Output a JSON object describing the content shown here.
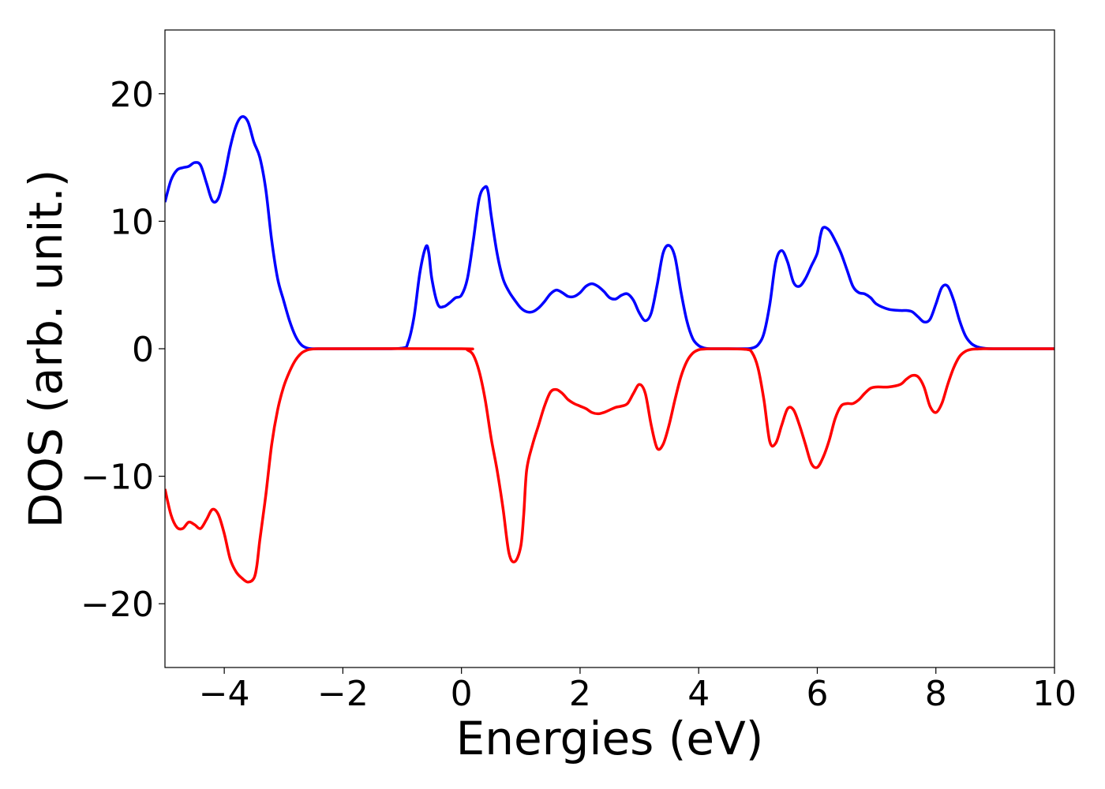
{
  "chart_data": {
    "type": "line",
    "title": "",
    "xlabel": "Energies (eV)",
    "ylabel": "DOS (arb. unit.)",
    "xlim": [
      -5,
      10
    ],
    "ylim": [
      -25,
      25
    ],
    "xticks": [
      -4,
      -2,
      0,
      2,
      4,
      6,
      8,
      10
    ],
    "yticks": [
      -20,
      -10,
      0,
      10,
      20
    ],
    "xtick_labels": [
      "−4",
      "−2",
      "0",
      "2",
      "4",
      "6",
      "8",
      "10"
    ],
    "ytick_labels": [
      "−20",
      "−10",
      "0",
      "10",
      "20"
    ],
    "grid": false,
    "legend": "none",
    "series": [
      {
        "color": "#0000ff",
        "x": [
          -5.0,
          -4.9,
          -4.8,
          -4.7,
          -4.6,
          -4.5,
          -4.4,
          -4.3,
          -4.2,
          -4.1,
          -4.0,
          -3.9,
          -3.8,
          -3.7,
          -3.6,
          -3.5,
          -3.4,
          -3.3,
          -3.2,
          -3.1,
          -3.0,
          -2.9,
          -2.8,
          -2.7,
          -2.6,
          -2.5,
          -2.4,
          -2.3,
          -2.2,
          -1.5,
          -1.0,
          -0.9,
          -0.8,
          -0.7,
          -0.6,
          -0.55,
          -0.5,
          -0.4,
          -0.3,
          -0.2,
          -0.1,
          0.0,
          0.1,
          0.2,
          0.3,
          0.4,
          0.45,
          0.5,
          0.6,
          0.7,
          0.8,
          0.9,
          1.0,
          1.1,
          1.2,
          1.3,
          1.4,
          1.5,
          1.6,
          1.7,
          1.8,
          1.9,
          2.0,
          2.1,
          2.2,
          2.3,
          2.4,
          2.5,
          2.6,
          2.7,
          2.8,
          2.9,
          3.0,
          3.1,
          3.2,
          3.3,
          3.4,
          3.5,
          3.6,
          3.7,
          3.8,
          3.9,
          4.0,
          4.1,
          4.2,
          4.5,
          4.8,
          4.9,
          5.0,
          5.1,
          5.2,
          5.3,
          5.4,
          5.5,
          5.6,
          5.7,
          5.8,
          5.9,
          6.0,
          6.05,
          6.1,
          6.2,
          6.3,
          6.4,
          6.5,
          6.6,
          6.7,
          6.8,
          6.9,
          7.0,
          7.2,
          7.4,
          7.5,
          7.6,
          7.7,
          7.8,
          7.9,
          8.0,
          8.1,
          8.2,
          8.3,
          8.4,
          8.5,
          8.6,
          8.7,
          8.8,
          9.0,
          10.0
        ],
        "y": [
          11.5,
          13.2,
          14.0,
          14.2,
          14.3,
          14.6,
          14.4,
          13.0,
          11.6,
          11.8,
          13.5,
          15.8,
          17.5,
          18.2,
          17.8,
          16.2,
          15.0,
          12.5,
          8.5,
          5.5,
          3.8,
          2.2,
          1.0,
          0.3,
          0.05,
          0.0,
          0.0,
          0.0,
          0.0,
          0.0,
          0.05,
          0.5,
          2.5,
          6.0,
          8.0,
          7.5,
          5.5,
          3.5,
          3.3,
          3.6,
          4.0,
          4.2,
          5.5,
          8.5,
          11.8,
          12.7,
          12.3,
          10.5,
          7.5,
          5.5,
          4.5,
          3.8,
          3.2,
          2.9,
          2.9,
          3.2,
          3.7,
          4.3,
          4.6,
          4.4,
          4.1,
          4.1,
          4.4,
          4.9,
          5.1,
          4.9,
          4.5,
          4.0,
          3.9,
          4.2,
          4.3,
          3.8,
          2.8,
          2.2,
          2.8,
          5.0,
          7.5,
          8.1,
          7.2,
          4.5,
          2.2,
          0.8,
          0.25,
          0.05,
          0.0,
          0.0,
          0.0,
          0.05,
          0.3,
          1.2,
          3.5,
          6.8,
          7.7,
          6.8,
          5.2,
          4.9,
          5.5,
          6.5,
          7.5,
          8.8,
          9.5,
          9.3,
          8.5,
          7.5,
          6.2,
          4.9,
          4.4,
          4.3,
          4.0,
          3.5,
          3.1,
          3.0,
          3.0,
          2.9,
          2.5,
          2.1,
          2.3,
          3.5,
          4.8,
          4.9,
          3.8,
          2.2,
          1.0,
          0.4,
          0.15,
          0.05,
          0.0,
          0.0
        ]
      },
      {
        "color": "#ff0000",
        "x": [
          -5.0,
          -4.9,
          -4.8,
          -4.7,
          -4.6,
          -4.5,
          -4.4,
          -4.3,
          -4.2,
          -4.1,
          -4.0,
          -3.9,
          -3.8,
          -3.7,
          -3.6,
          -3.5,
          -3.45,
          -3.4,
          -3.3,
          -3.2,
          -3.1,
          -3.0,
          -2.9,
          -2.8,
          -2.7,
          -2.6,
          -2.5,
          -2.4,
          -2.3,
          -2.2,
          0.0,
          0.1,
          0.2,
          0.3,
          0.4,
          0.5,
          0.6,
          0.7,
          0.8,
          0.9,
          1.0,
          1.05,
          1.1,
          1.2,
          1.3,
          1.4,
          1.5,
          1.6,
          1.7,
          1.8,
          1.9,
          2.0,
          2.1,
          2.2,
          2.3,
          2.4,
          2.5,
          2.6,
          2.7,
          2.8,
          2.9,
          3.0,
          3.1,
          3.2,
          3.3,
          3.4,
          3.5,
          3.6,
          3.7,
          3.8,
          3.9,
          4.0,
          4.1,
          4.2,
          4.3,
          4.5,
          4.8,
          4.9,
          5.0,
          5.1,
          5.2,
          5.3,
          5.4,
          5.5,
          5.6,
          5.7,
          5.8,
          5.9,
          6.0,
          6.1,
          6.2,
          6.3,
          6.4,
          6.5,
          6.6,
          6.7,
          6.8,
          6.9,
          7.0,
          7.2,
          7.4,
          7.5,
          7.6,
          7.7,
          7.8,
          7.9,
          8.0,
          8.1,
          8.2,
          8.3,
          8.4,
          8.5,
          8.6,
          8.7,
          8.8,
          9.0,
          10.0
        ],
        "y": [
          -11.0,
          -13.0,
          -14.0,
          -14.1,
          -13.6,
          -13.8,
          -14.1,
          -13.4,
          -12.6,
          -13.0,
          -14.5,
          -16.5,
          -17.5,
          -18.0,
          -18.3,
          -18.0,
          -17.0,
          -15.0,
          -11.5,
          -7.5,
          -4.8,
          -3.0,
          -1.8,
          -0.9,
          -0.35,
          -0.1,
          -0.02,
          0.0,
          0.0,
          0.0,
          0.0,
          -0.1,
          -0.5,
          -1.8,
          -4.0,
          -7.0,
          -9.5,
          -12.5,
          -16.0,
          -16.7,
          -15.5,
          -13.0,
          -9.5,
          -7.5,
          -6.0,
          -4.5,
          -3.4,
          -3.2,
          -3.5,
          -4.0,
          -4.3,
          -4.5,
          -4.7,
          -5.0,
          -5.1,
          -5.0,
          -4.8,
          -4.6,
          -4.5,
          -4.3,
          -3.5,
          -2.8,
          -3.5,
          -6.0,
          -7.8,
          -7.5,
          -6.0,
          -4.0,
          -2.2,
          -1.0,
          -0.35,
          -0.08,
          -0.02,
          0.0,
          0.0,
          0.0,
          -0.05,
          -0.3,
          -1.5,
          -4.0,
          -7.3,
          -7.4,
          -6.0,
          -4.7,
          -4.8,
          -6.0,
          -7.5,
          -9.0,
          -9.3,
          -8.5,
          -7.2,
          -5.5,
          -4.5,
          -4.3,
          -4.3,
          -4.0,
          -3.5,
          -3.1,
          -3.0,
          -3.0,
          -2.8,
          -2.4,
          -2.1,
          -2.2,
          -3.0,
          -4.5,
          -5.0,
          -4.3,
          -2.8,
          -1.5,
          -0.6,
          -0.2,
          -0.05,
          -0.02,
          0.0,
          0.0,
          0.0
        ]
      }
    ]
  }
}
